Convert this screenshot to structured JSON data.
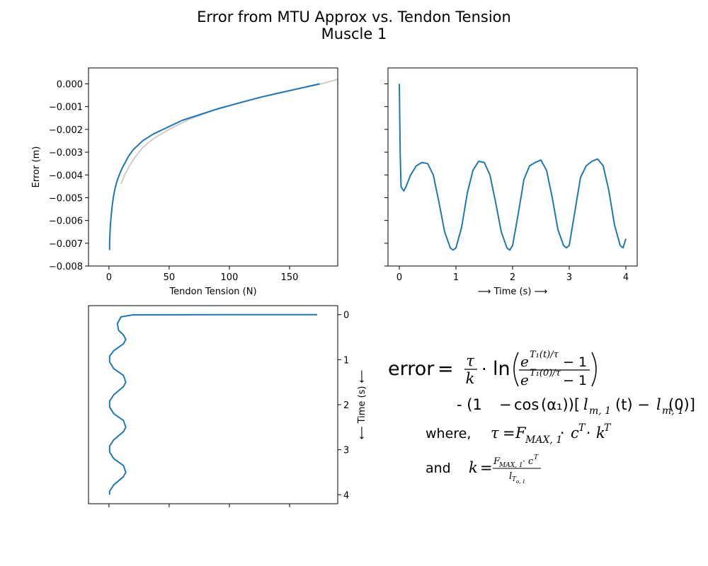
{
  "figure": {
    "title_line1": "Error from MTU Approx vs. Tendon Tension",
    "title_line2": "Muscle 1"
  },
  "chart_data": [
    {
      "type": "line",
      "xlabel": "Tendon Tension (N)",
      "ylabel": "Error (m)",
      "xlim": [
        -17,
        190
      ],
      "ylim": [
        -0.008,
        0.0007
      ],
      "xticks": [
        0,
        50,
        100,
        150
      ],
      "xtick_labels": [
        "0",
        "50",
        "100",
        "150"
      ],
      "yticks": [
        0.0,
        -0.001,
        -0.002,
        -0.003,
        -0.004,
        -0.005,
        -0.006,
        -0.007,
        -0.008
      ],
      "ytick_labels": [
        "0.000",
        "−0.001",
        "−0.002",
        "−0.003",
        "−0.004",
        "−0.005",
        "−0.006",
        "−0.007",
        "−0.008"
      ],
      "grid": false,
      "series": [
        {
          "color": "#cccccc",
          "x": [
            10,
            13,
            17,
            22,
            28,
            37,
            50,
            65,
            85,
            110,
            140,
            175,
            190
          ],
          "y": [
            -0.0044,
            -0.004,
            -0.0036,
            -0.0032,
            -0.0028,
            -0.0024,
            -0.002,
            -0.0016,
            -0.0012,
            -0.0008,
            -0.0004,
            -2e-05,
            0.0002
          ]
        },
        {
          "color": "#1f77b4",
          "x": [
            0.5,
            0.5,
            0.8,
            1.2,
            1.8,
            2.6,
            3.6,
            5,
            6.5,
            8.5,
            11,
            14,
            16,
            20,
            28,
            37,
            61,
            90,
            125,
            175
          ],
          "y": [
            -0.0073,
            -0.007,
            -0.0066,
            -0.0062,
            -0.0058,
            -0.0054,
            -0.005,
            -0.0046,
            -0.0043,
            -0.004,
            -0.0037,
            -0.0034,
            -0.0032,
            -0.0029,
            -0.0025,
            -0.0022,
            -0.0016,
            -0.0011,
            -0.0006,
            0.0
          ]
        }
      ]
    },
    {
      "type": "line",
      "xlabel": "⟶  Time (s)  ⟶",
      "ylabel": "",
      "xlim": [
        -0.2,
        4.2
      ],
      "ylim": [
        -0.008,
        0.0007
      ],
      "xticks": [
        0,
        1,
        2,
        3,
        4
      ],
      "xtick_labels": [
        "0",
        "1",
        "2",
        "3",
        "4"
      ],
      "yticks": [
        0.0,
        -0.001,
        -0.002,
        -0.003,
        -0.004,
        -0.005,
        -0.006,
        -0.007,
        -0.008
      ],
      "ytick_labels": [
        "",
        "",
        "",
        "",
        "",
        "",
        "",
        "",
        ""
      ],
      "grid": false,
      "series": [
        {
          "color": "#1f77b4",
          "x": [
            0.0,
            0.015,
            0.03,
            0.05,
            0.08,
            0.12,
            0.2,
            0.3,
            0.4,
            0.5,
            0.6,
            0.7,
            0.8,
            0.9,
            0.95,
            1.0,
            1.1,
            1.2,
            1.3,
            1.4,
            1.5,
            1.6,
            1.7,
            1.8,
            1.9,
            1.95,
            2.0,
            2.1,
            2.2,
            2.3,
            2.4,
            2.5,
            2.6,
            2.7,
            2.8,
            2.9,
            2.95,
            3.0,
            3.1,
            3.2,
            3.3,
            3.4,
            3.5,
            3.6,
            3.7,
            3.8,
            3.9,
            3.95,
            4.0
          ],
          "y": [
            0.0,
            -0.003,
            -0.0045,
            -0.0046,
            -0.0047,
            -0.0045,
            -0.004,
            -0.0036,
            -0.00345,
            -0.0035,
            -0.004,
            -0.0052,
            -0.0065,
            -0.0072,
            -0.0073,
            -0.0072,
            -0.0063,
            -0.0048,
            -0.0038,
            -0.0034,
            -0.00345,
            -0.004,
            -0.0052,
            -0.0065,
            -0.0072,
            -0.0073,
            -0.0071,
            -0.0057,
            -0.0042,
            -0.0036,
            -0.00345,
            -0.00335,
            -0.0038,
            -0.005,
            -0.0064,
            -0.0071,
            -0.0072,
            -0.0071,
            -0.0056,
            -0.0041,
            -0.0036,
            -0.0034,
            -0.0033,
            -0.0036,
            -0.0047,
            -0.0062,
            -0.0071,
            -0.0072,
            -0.0068
          ]
        }
      ]
    },
    {
      "type": "line",
      "xlabel": "",
      "ylabel": "⟵  Time (s)  ⟵",
      "xlim": [
        -17,
        190
      ],
      "ylim": [
        4.2,
        -0.2
      ],
      "xticks": [
        0,
        50,
        100,
        150
      ],
      "xtick_labels": [
        "",
        "",
        "",
        ""
      ],
      "yticks": [
        0,
        1,
        2,
        3,
        4
      ],
      "ytick_labels": [
        "0",
        "1",
        "2",
        "3",
        "4"
      ],
      "grid": false,
      "series": [
        {
          "color": "#1f77b4",
          "x": [
            173,
            100,
            20,
            10,
            7,
            8,
            12,
            14,
            12,
            4,
            0.5,
            0.5,
            4,
            12,
            14,
            12,
            4,
            0.5,
            0.5,
            4,
            12,
            14,
            12,
            4,
            0.5,
            0.5,
            4,
            12,
            14,
            12,
            4,
            0.5,
            0.5
          ],
          "y": [
            0.0,
            0.0,
            0.005,
            0.05,
            0.2,
            0.35,
            0.45,
            0.55,
            0.65,
            0.8,
            0.92,
            1.05,
            1.2,
            1.35,
            1.5,
            1.6,
            1.78,
            1.92,
            2.05,
            2.2,
            2.35,
            2.5,
            2.6,
            2.78,
            2.92,
            3.05,
            3.2,
            3.35,
            3.5,
            3.6,
            3.78,
            3.92,
            4.0
          ]
        }
      ]
    }
  ],
  "equation": {
    "error_word": "error",
    "equals": "=",
    "tau": "τ",
    "k": "k",
    "cdot": "·",
    "ln": "ln",
    "num_base": "e",
    "num_exp": "T₁(t)/τ",
    "den_exp": "T₁(0)/τ",
    "minus_one": "− 1",
    "line2_lead": "- (1",
    "cos": "cos",
    "alpha": "(α₁))[",
    "l": "l",
    "sub_m1": "m, 1",
    "t_arg": "(t) − ",
    "zero_arg": "(0)]",
    "where_word": "where,",
    "eq": "=",
    "F": "F",
    "sub_max": "MAX, 1",
    "c": "c",
    "sup_T": "T",
    "and_word": "and",
    "small_den_sub": "T",
    "small_den_subsub": "o, 1"
  }
}
